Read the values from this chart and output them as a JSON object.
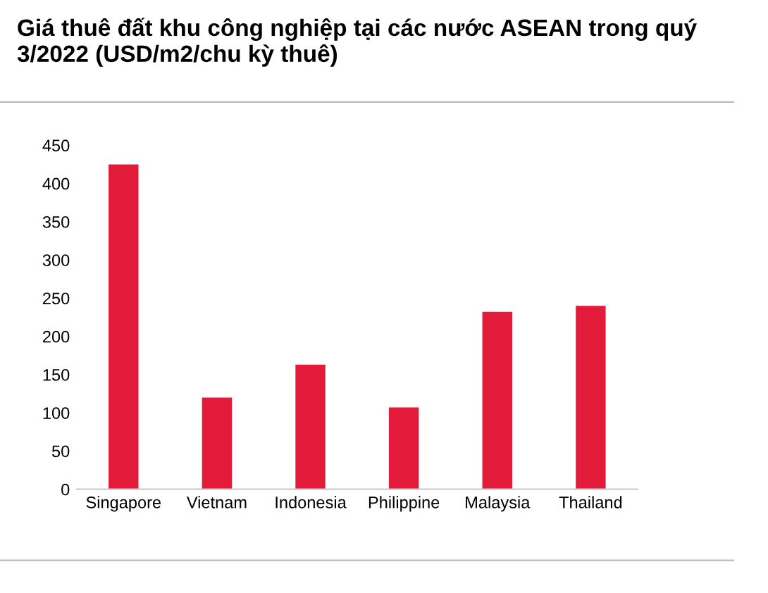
{
  "chart_data": {
    "type": "bar",
    "title": "Giá thuê đất khu công nghiệp tại các nước ASEAN trong quý 3/2022 (USD/m2/chu kỳ thuê)",
    "categories": [
      "Singapore",
      "Vietnam",
      "Indonesia",
      "Philippine",
      "Malaysia",
      "Thailand"
    ],
    "values": [
      425,
      120,
      163,
      107,
      232,
      240
    ],
    "color": "#e31b3a",
    "ylim": [
      0,
      450
    ],
    "yticks": [
      0,
      50,
      100,
      150,
      200,
      250,
      300,
      350,
      400,
      450
    ],
    "grid": false
  }
}
